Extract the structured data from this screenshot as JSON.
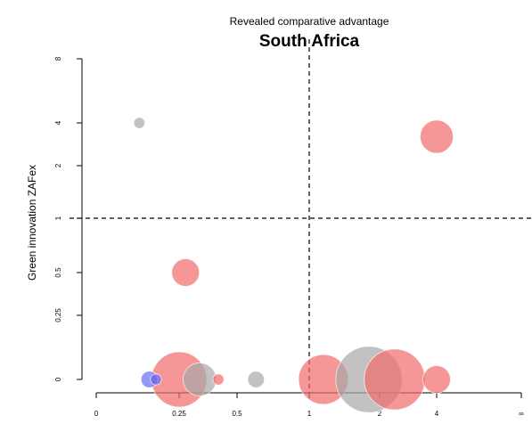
{
  "chart_data": {
    "type": "scatter",
    "supertitle": "Revealed comparative advantage",
    "title": "South Africa",
    "xlabel": "",
    "ylabel": "Green innovation ZAFex",
    "x_ticks": [
      "0",
      "0.25",
      "0.5",
      "1",
      "2",
      "4",
      "∞"
    ],
    "y_ticks": [
      "0",
      "0.25",
      "0.5",
      "1",
      "2",
      "4",
      "8"
    ],
    "x_scale": "log-like (0 to infinity)",
    "y_scale": "log-like (0 to 8)",
    "reference_lines": {
      "x": 1,
      "y": 1,
      "style": "dashed"
    },
    "grid": false,
    "legend": "none",
    "colors": {
      "red": "#f26b6b",
      "gray": "#a8a8a8",
      "blue": "#6b6bf2"
    },
    "points": [
      {
        "x": 0.13,
        "y": 4,
        "size": 2,
        "color": "gray"
      },
      {
        "x": 4.3,
        "y": 3.2,
        "size": 6,
        "color": "red"
      },
      {
        "x": 0.27,
        "y": 0.5,
        "size": 5,
        "color": "red"
      },
      {
        "x": 0.25,
        "y": 0,
        "size": 10,
        "color": "red"
      },
      {
        "x": 0.16,
        "y": 0,
        "size": 3,
        "color": "blue"
      },
      {
        "x": 0.18,
        "y": 0,
        "size": 2,
        "color": "blue"
      },
      {
        "x": 0.32,
        "y": 0,
        "size": 6,
        "color": "gray"
      },
      {
        "x": 0.4,
        "y": 0,
        "size": 2,
        "color": "red"
      },
      {
        "x": 0.6,
        "y": 0,
        "size": 3,
        "color": "gray"
      },
      {
        "x": 1.15,
        "y": 0,
        "size": 9,
        "color": "red"
      },
      {
        "x": 1.8,
        "y": 0,
        "size": 12,
        "color": "gray"
      },
      {
        "x": 2.4,
        "y": 0,
        "size": 11,
        "color": "red"
      },
      {
        "x": 5.3,
        "y": 0,
        "size": 5,
        "color": "red"
      }
    ]
  }
}
